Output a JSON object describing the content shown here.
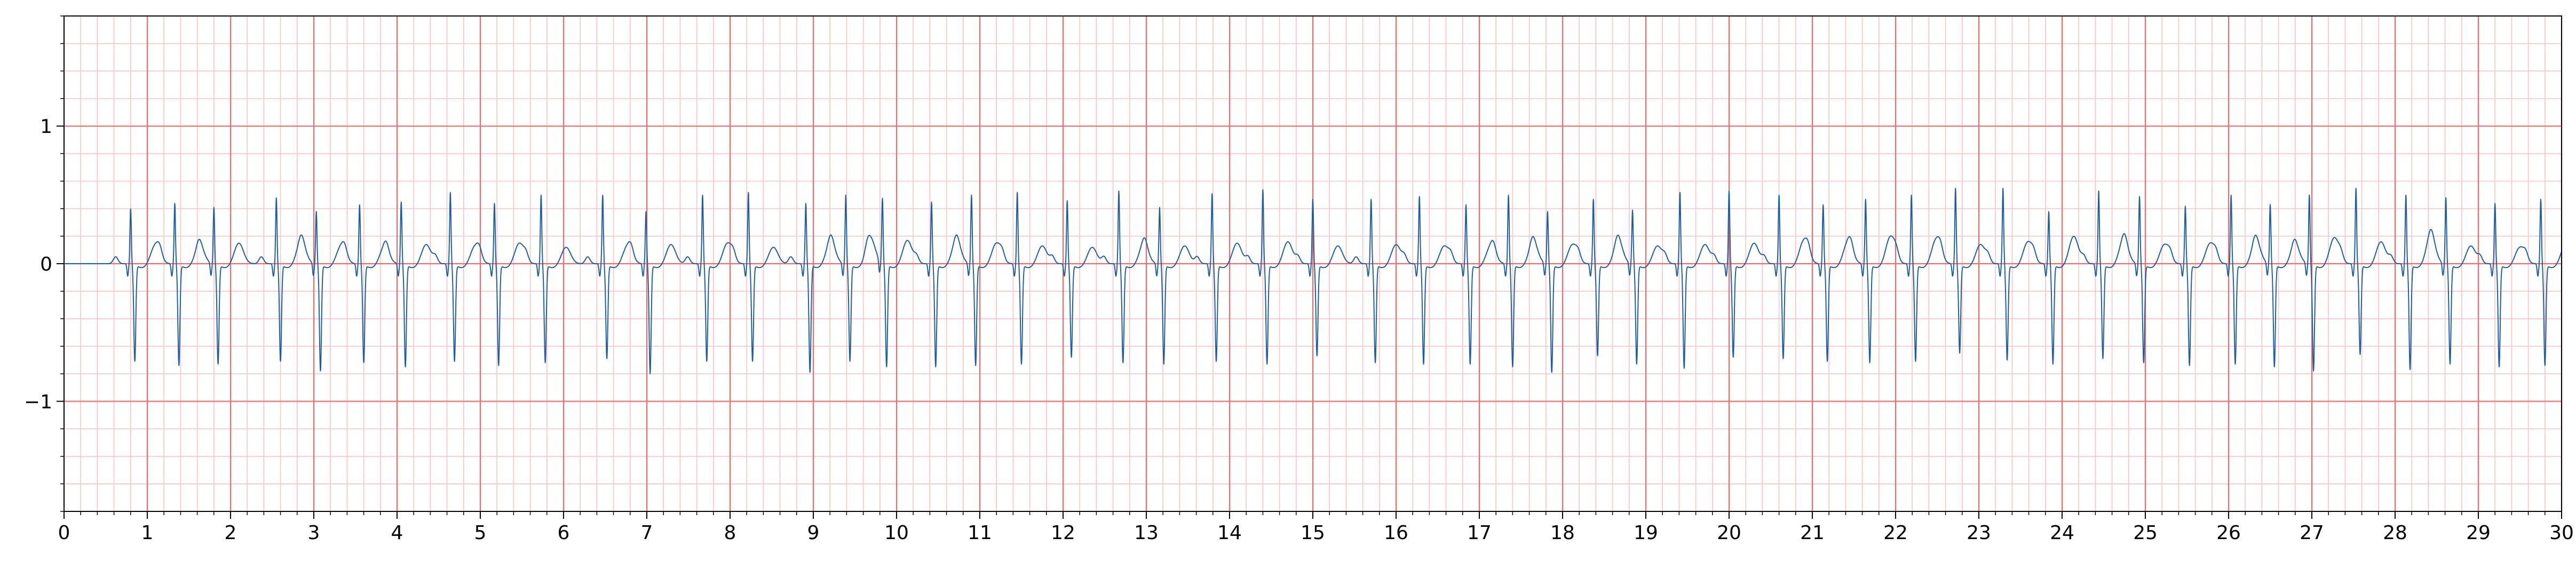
{
  "chart_data": {
    "type": "line",
    "title": "",
    "xlabel": "",
    "ylabel": "",
    "xlim": [
      0,
      30
    ],
    "ylim": [
      -1.8,
      1.8
    ],
    "grid": true,
    "legend": "none",
    "x_ticks": [
      0,
      1,
      2,
      3,
      4,
      5,
      6,
      7,
      8,
      9,
      10,
      11,
      12,
      13,
      14,
      15,
      16,
      17,
      18,
      19,
      20,
      21,
      22,
      23,
      24,
      25,
      26,
      27,
      28,
      29,
      30
    ],
    "x_tick_labels": [
      "0",
      "1",
      "2",
      "3",
      "4",
      "5",
      "6",
      "7",
      "8",
      "9",
      "10",
      "11",
      "12",
      "13",
      "14",
      "15",
      "16",
      "17",
      "18",
      "19",
      "20",
      "21",
      "22",
      "23",
      "24",
      "25",
      "26",
      "27",
      "28",
      "29",
      "30"
    ],
    "y_ticks": [
      -1,
      0,
      1
    ],
    "y_tick_labels": [
      "−1",
      "0",
      "1"
    ],
    "major_grid_x_step": 1.0,
    "minor_grid_x_step": 0.2,
    "major_grid_y_step": 1.0,
    "minor_grid_y_step": 0.2,
    "series": [
      {
        "beats_s": [
          0.8,
          1.33,
          1.8,
          2.55,
          3.03,
          3.55,
          4.05,
          4.64,
          5.17,
          5.73,
          6.47,
          6.99,
          7.67,
          8.22,
          8.91,
          9.39,
          9.83,
          10.42,
          10.9,
          11.45,
          12.05,
          12.67,
          13.16,
          13.79,
          14.4,
          15.0,
          15.7,
          16.28,
          16.84,
          17.35,
          17.82,
          18.37,
          18.84,
          19.41,
          20.0,
          20.6,
          21.13,
          21.64,
          22.19,
          22.72,
          23.29,
          23.84,
          24.44,
          24.93,
          25.48,
          26.03,
          26.5,
          26.97,
          27.53,
          28.13,
          28.61,
          29.2,
          29.75
        ],
        "r_peak_mv": [
          0.4,
          0.44,
          0.41,
          0.48,
          0.38,
          0.43,
          0.45,
          0.52,
          0.44,
          0.5,
          0.5,
          0.38,
          0.5,
          0.52,
          0.44,
          0.5,
          0.47,
          0.45,
          0.5,
          0.52,
          0.46,
          0.53,
          0.41,
          0.51,
          0.54,
          0.47,
          0.47,
          0.49,
          0.43,
          0.5,
          0.38,
          0.47,
          0.39,
          0.52,
          0.53,
          0.5,
          0.43,
          0.47,
          0.5,
          0.55,
          0.55,
          0.38,
          0.53,
          0.49,
          0.42,
          0.5,
          0.43,
          0.5,
          0.55,
          0.5,
          0.48,
          0.44,
          0.47
        ],
        "s_trough_mv": [
          -0.7,
          -0.73,
          -0.72,
          -0.7,
          -0.77,
          -0.71,
          -0.74,
          -0.7,
          -0.73,
          -0.71,
          -0.68,
          -0.79,
          -0.7,
          -0.7,
          -0.78,
          -0.7,
          -0.74,
          -0.74,
          -0.73,
          -0.72,
          -0.67,
          -0.71,
          -0.72,
          -0.7,
          -0.72,
          -0.66,
          -0.71,
          -0.72,
          -0.72,
          -0.74,
          -0.78,
          -0.66,
          -0.72,
          -0.75,
          -0.67,
          -0.68,
          -0.7,
          -0.71,
          -0.7,
          -0.64,
          -0.69,
          -0.72,
          -0.68,
          -0.71,
          -0.73,
          -0.72,
          -0.74,
          -0.77,
          -0.65,
          -0.76,
          -0.72,
          -0.74,
          -0.73
        ],
        "t_wave_mv": [
          0.14,
          0.13,
          0.15,
          0.16,
          0.13,
          0.12,
          0.14,
          0.13,
          0.15,
          0.12,
          0.13,
          0.14,
          0.15,
          0.12,
          0.16,
          0.18,
          0.17,
          0.16,
          0.15,
          0.13,
          0.12,
          0.14,
          0.13,
          0.15,
          0.16,
          0.13,
          0.14,
          0.13,
          0.13,
          0.15,
          0.14,
          0.16,
          0.13,
          0.14,
          0.15,
          0.17,
          0.16,
          0.2,
          0.18,
          0.14,
          0.16,
          0.2,
          0.17,
          0.14,
          0.15,
          0.16,
          0.13,
          0.19,
          0.16,
          0.2,
          0.13,
          0.12,
          0.14
        ]
      }
    ],
    "colors": {
      "signal": "#1f5fa0",
      "major_grid": "#f26a6a",
      "minor_grid": "#fbc4c4",
      "axes": "#000000",
      "background": "#ffffff"
    }
  }
}
